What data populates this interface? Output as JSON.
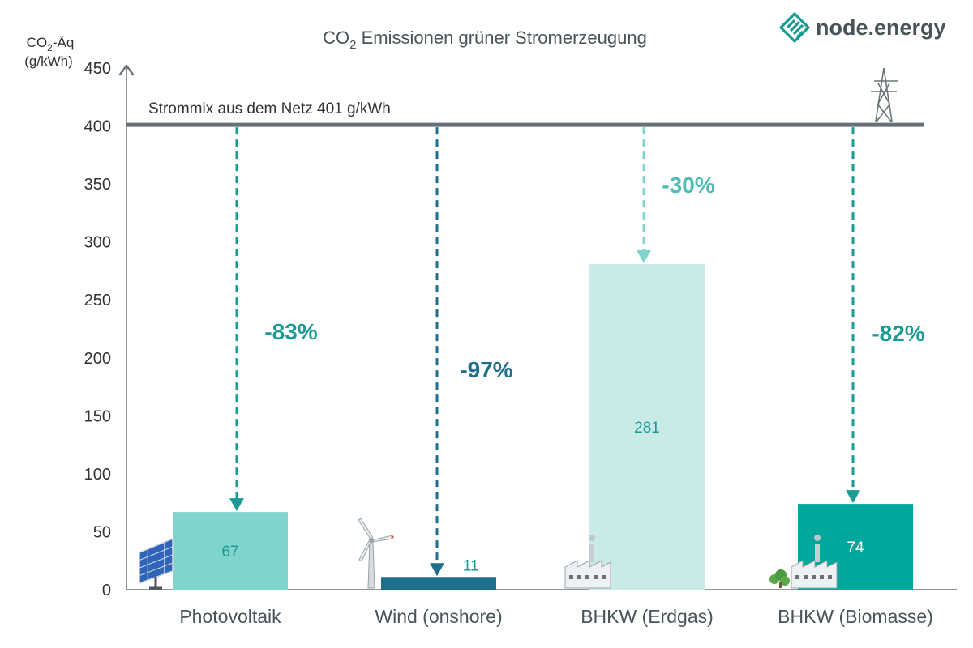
{
  "brand": {
    "name": "node.energy",
    "color": "#1a9b94"
  },
  "chart_data": {
    "type": "bar",
    "title_main": "CO",
    "title_sub": "2",
    "title_rest": " Emissionen grüner Stromerzeugung",
    "ylabel_line1_main": "CO",
    "ylabel_line1_sub": "2",
    "ylabel_line1_rest": "-Äq",
    "ylabel_line2": "(g/kWh)",
    "ylim": [
      0,
      450
    ],
    "yticks": [
      0,
      50,
      100,
      150,
      200,
      250,
      300,
      350,
      400,
      450
    ],
    "reference_line": {
      "value": 401,
      "label": "Strommix aus dem Netz 401 g/kWh",
      "color": "#667278"
    },
    "categories": [
      "Photovoltaik",
      "Wind (onshore)",
      "BHKW (Erdgas)",
      "BHKW (Biomasse)"
    ],
    "values": [
      67,
      11,
      281,
      74
    ],
    "value_labels": [
      "67",
      "11",
      "281",
      "74"
    ],
    "reductions": [
      "-83%",
      "-97%",
      "-30%",
      "-82%"
    ],
    "bar_colors": [
      "#7fd5cc",
      "#1e6e8c",
      "#c9ebe8",
      "#00a79d"
    ],
    "value_label_colors": [
      "#1a9b94",
      "#1a9b94",
      "#1a9b94",
      "#ffffff"
    ],
    "arrow_colors": [
      "#1a9b94",
      "#1e6e8c",
      "#7fd5cc",
      "#1a9b94"
    ],
    "reduction_colors": [
      "#1a9b94",
      "#1e6e8c",
      "#4fbdb3",
      "#1a9b94"
    ],
    "icons": [
      "solar-panel-icon",
      "wind-turbine-icon",
      "gas-power-plant-icon",
      "biomass-power-plant-icon"
    ],
    "grid": false
  }
}
